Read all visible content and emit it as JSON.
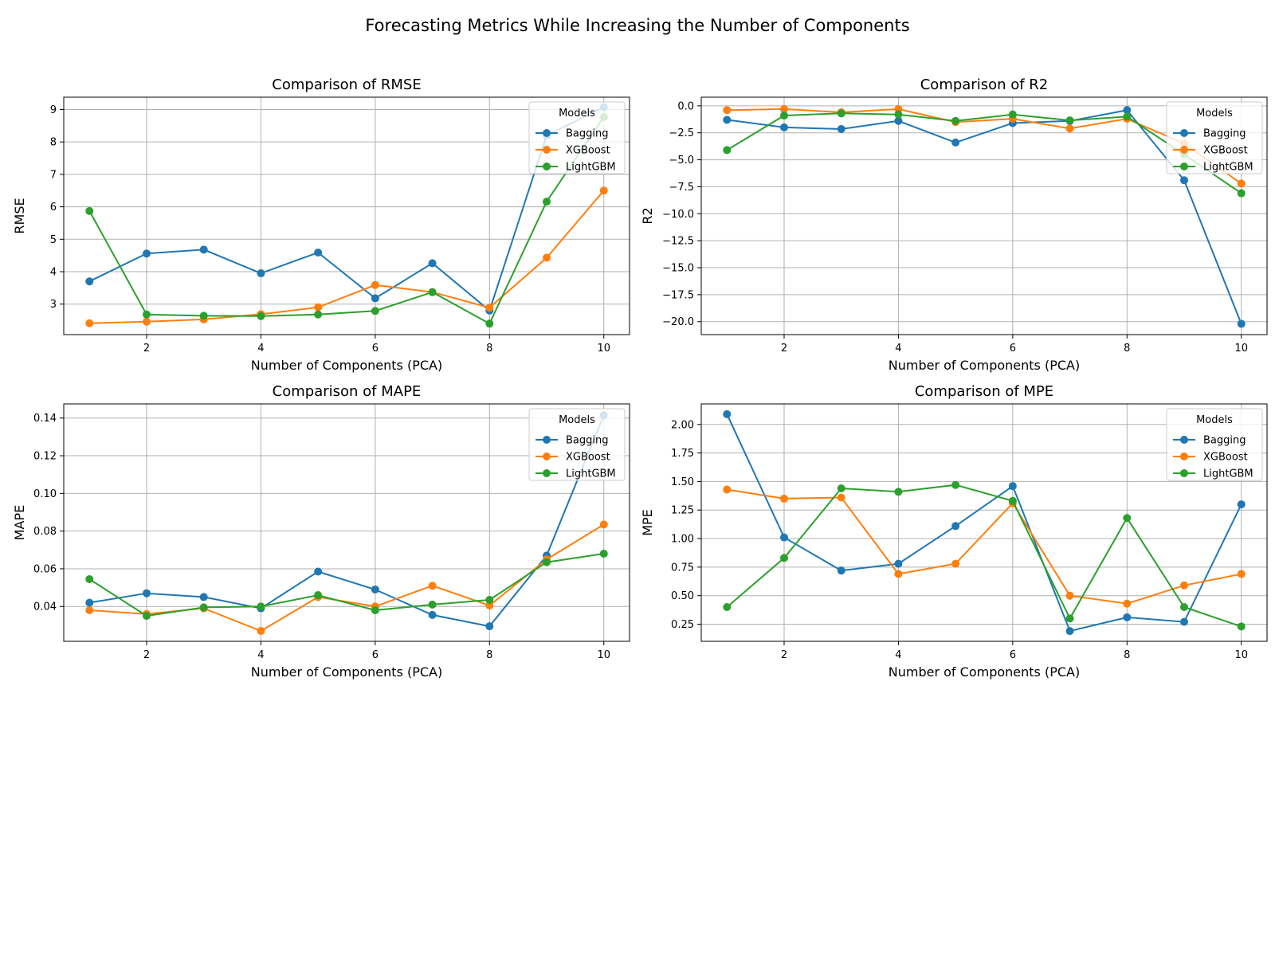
{
  "suptitle": "Forecasting Metrics While Increasing the Number of Components",
  "colors": {
    "Bagging": "#1f77b4",
    "XGBoost": "#ff7f0e",
    "LightGBM": "#2ca02c",
    "grid": "#b0b0b0"
  },
  "chart_data": [
    {
      "type": "line",
      "title": "Comparison of RMSE",
      "xlabel": "Number of Components (PCA)",
      "ylabel": "RMSE",
      "xlim": [
        0.55,
        10.45
      ],
      "ylim": [
        2.06,
        9.38
      ],
      "xticks": [
        2,
        4,
        6,
        8,
        10
      ],
      "yticks": [
        3,
        4,
        5,
        6,
        7,
        8,
        9
      ],
      "ytick_labels": [
        "3",
        "4",
        "5",
        "6",
        "7",
        "8",
        "9"
      ],
      "grid": true,
      "legend_title": "Models",
      "legend_loc": "upper right",
      "x": [
        1,
        2,
        3,
        4,
        5,
        6,
        7,
        8,
        9,
        10
      ],
      "series": [
        {
          "name": "Bagging",
          "values": [
            3.7,
            4.56,
            4.68,
            3.95,
            4.59,
            3.18,
            4.26,
            2.8,
            8.2,
            9.07
          ]
        },
        {
          "name": "XGBoost",
          "values": [
            2.41,
            2.46,
            2.53,
            2.69,
            2.9,
            3.59,
            3.37,
            2.89,
            4.43,
            6.5
          ]
        },
        {
          "name": "LightGBM",
          "values": [
            5.87,
            2.68,
            2.64,
            2.63,
            2.68,
            2.79,
            3.37,
            2.4,
            6.16,
            8.77
          ]
        }
      ]
    },
    {
      "type": "line",
      "title": "Comparison of R2",
      "xlabel": "Number of Components (PCA)",
      "ylabel": "R2",
      "xlim": [
        0.55,
        10.45
      ],
      "ylim": [
        -21.2,
        0.8
      ],
      "xticks": [
        2,
        4,
        6,
        8,
        10
      ],
      "yticks": [
        0,
        -2.5,
        -5,
        -7.5,
        -10,
        -12.5,
        -15,
        -17.5,
        -20
      ],
      "ytick_labels": [
        "0.0",
        "−2.5",
        "−5.0",
        "−7.5",
        "−10.0",
        "−12.5",
        "−15.0",
        "−17.5",
        "−20.0"
      ],
      "grid": true,
      "legend_title": "Models",
      "legend_loc": "upper right",
      "x": [
        1,
        2,
        3,
        4,
        5,
        6,
        7,
        8,
        9,
        10
      ],
      "series": [
        {
          "name": "Bagging",
          "values": [
            -1.3,
            -2.0,
            -2.15,
            -1.4,
            -3.4,
            -1.6,
            -1.4,
            -0.4,
            -6.9,
            -20.2
          ]
        },
        {
          "name": "XGBoost",
          "values": [
            -0.4,
            -0.3,
            -0.6,
            -0.3,
            -1.5,
            -1.2,
            -2.1,
            -1.2,
            -3.5,
            -7.2
          ]
        },
        {
          "name": "LightGBM",
          "values": [
            -4.1,
            -0.9,
            -0.7,
            -0.8,
            -1.4,
            -0.8,
            -1.35,
            -1.0,
            -4.5,
            -8.1
          ]
        }
      ]
    },
    {
      "type": "line",
      "title": "Comparison of MAPE",
      "xlabel": "Number of Components (PCA)",
      "ylabel": "MAPE",
      "xlim": [
        0.55,
        10.45
      ],
      "ylim": [
        0.0215,
        0.1475
      ],
      "xticks": [
        2,
        4,
        6,
        8,
        10
      ],
      "yticks": [
        0.04,
        0.06,
        0.08,
        0.1,
        0.12,
        0.14
      ],
      "ytick_labels": [
        "0.04",
        "0.06",
        "0.08",
        "0.10",
        "0.12",
        "0.14"
      ],
      "grid": true,
      "legend_title": "Models",
      "legend_loc": "upper right",
      "x": [
        1,
        2,
        3,
        4,
        5,
        6,
        7,
        8,
        9,
        10
      ],
      "series": [
        {
          "name": "Bagging",
          "values": [
            0.042,
            0.047,
            0.045,
            0.039,
            0.0585,
            0.049,
            0.0355,
            0.0295,
            0.067,
            0.1415
          ]
        },
        {
          "name": "XGBoost",
          "values": [
            0.038,
            0.036,
            0.039,
            0.027,
            0.045,
            0.04,
            0.051,
            0.0405,
            0.065,
            0.0835
          ]
        },
        {
          "name": "LightGBM",
          "values": [
            0.0545,
            0.035,
            0.0395,
            0.04,
            0.046,
            0.038,
            0.041,
            0.0435,
            0.0635,
            0.068
          ]
        }
      ]
    },
    {
      "type": "line",
      "title": "Comparison of MPE",
      "xlabel": "Number of Components (PCA)",
      "ylabel": "MPE",
      "xlim": [
        0.55,
        10.45
      ],
      "ylim": [
        0.1,
        2.18
      ],
      "xticks": [
        2,
        4,
        6,
        8,
        10
      ],
      "yticks": [
        0.25,
        0.5,
        0.75,
        1.0,
        1.25,
        1.5,
        1.75,
        2.0
      ],
      "ytick_labels": [
        "0.25",
        "0.50",
        "0.75",
        "1.00",
        "1.25",
        "1.50",
        "1.75",
        "2.00"
      ],
      "grid": true,
      "legend_title": "Models",
      "legend_loc": "upper right",
      "x": [
        1,
        2,
        3,
        4,
        5,
        6,
        7,
        8,
        9,
        10
      ],
      "series": [
        {
          "name": "Bagging",
          "values": [
            2.09,
            1.01,
            0.72,
            0.78,
            1.11,
            1.46,
            0.19,
            0.31,
            0.27,
            1.3
          ]
        },
        {
          "name": "XGBoost",
          "values": [
            1.43,
            1.35,
            1.36,
            0.69,
            0.78,
            1.31,
            0.5,
            0.43,
            0.59,
            0.69
          ]
        },
        {
          "name": "LightGBM",
          "values": [
            0.4,
            0.83,
            1.44,
            1.41,
            1.47,
            1.33,
            0.3,
            1.18,
            0.4,
            0.23
          ]
        }
      ]
    }
  ]
}
